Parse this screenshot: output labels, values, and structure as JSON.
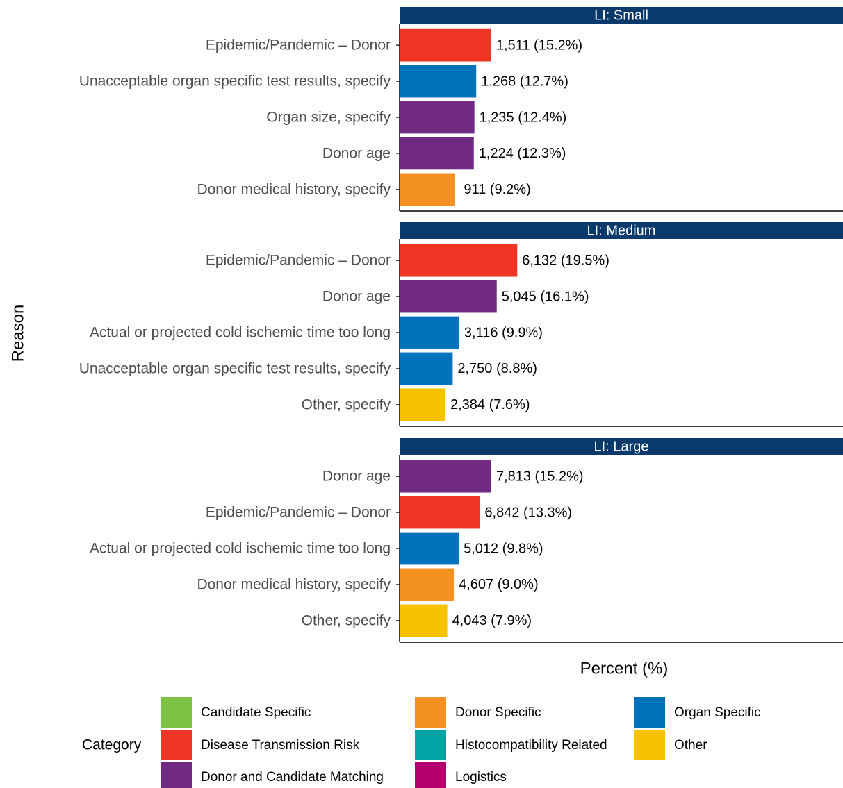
{
  "chart_data": {
    "type": "bar",
    "orientation": "horizontal",
    "ylabel": "Reason",
    "xlabel": "Percent (%)",
    "xlim": [
      0,
      73.5
    ],
    "legend_title": "Category",
    "legend": [
      {
        "name": "Candidate Specific",
        "color": "#7dc242"
      },
      {
        "name": "Disease Transmission Risk",
        "color": "#ef3524"
      },
      {
        "name": "Donor and Candidate Matching",
        "color": "#702a82"
      },
      {
        "name": "Donor Specific",
        "color": "#f39221"
      },
      {
        "name": "Histocompatibility Related",
        "color": "#00a3a6"
      },
      {
        "name": "Logistics",
        "color": "#b5006e"
      },
      {
        "name": "Organ Specific",
        "color": "#0071bb"
      },
      {
        "name": "Other",
        "color": "#f7c200"
      }
    ],
    "facets": [
      {
        "title": "LI: Small",
        "categories": [
          "Epidemic/Pandemic – Donor",
          "Unacceptable organ specific test results, specify",
          "Organ size, specify",
          "Donor age",
          "Donor medical history, specify"
        ],
        "values": [
          15.2,
          12.7,
          12.4,
          12.3,
          9.2
        ],
        "value_labels": [
          "1,511 (15.2%)",
          "1,268 (12.7%)",
          "1,235 (12.4%)",
          "1,224 (12.3%)",
          " 911 (9.2%)"
        ],
        "colors": [
          "#ef3524",
          "#0071bb",
          "#702a82",
          "#702a82",
          "#f39221"
        ]
      },
      {
        "title": "LI: Medium",
        "categories": [
          "Epidemic/Pandemic – Donor",
          "Donor age",
          "Actual or projected cold ischemic time too long",
          "Unacceptable organ specific test results, specify",
          "Other, specify"
        ],
        "values": [
          19.5,
          16.1,
          9.9,
          8.8,
          7.6
        ],
        "value_labels": [
          "6,132 (19.5%)",
          "5,045 (16.1%)",
          "3,116 (9.9%)",
          "2,750 (8.8%)",
          "2,384 (7.6%)"
        ],
        "colors": [
          "#ef3524",
          "#702a82",
          "#0071bb",
          "#0071bb",
          "#f7c200"
        ]
      },
      {
        "title": "LI: Large",
        "categories": [
          "Donor age",
          "Epidemic/Pandemic – Donor",
          "Actual or projected cold ischemic time too long",
          "Donor medical history, specify",
          "Other, specify"
        ],
        "values": [
          15.2,
          13.3,
          9.8,
          9.0,
          7.9
        ],
        "value_labels": [
          "7,813 (15.2%)",
          "6,842 (13.3%)",
          "5,012 (9.8%)",
          "4,607 (9.0%)",
          "4,043 (7.9%)"
        ],
        "colors": [
          "#702a82",
          "#ef3524",
          "#0071bb",
          "#f39221",
          "#f7c200"
        ]
      }
    ]
  }
}
